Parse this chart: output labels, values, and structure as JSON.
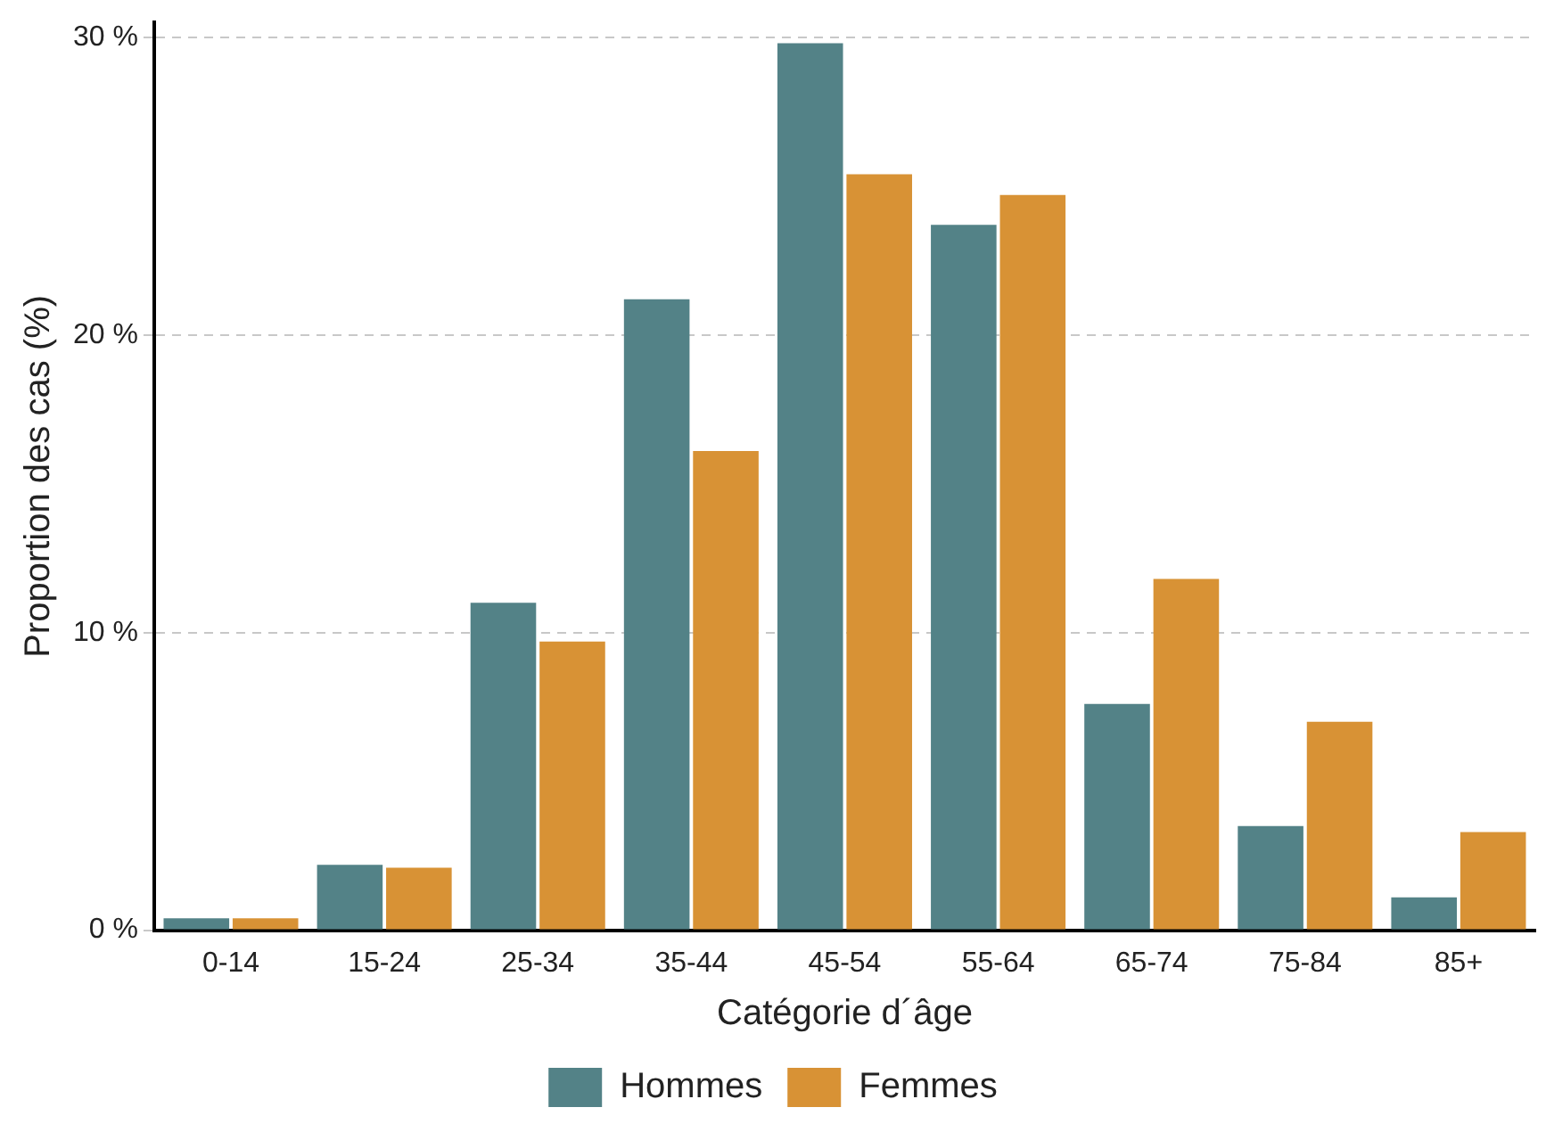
{
  "chart_data": {
    "type": "bar",
    "xlabel": "Catégorie d´âge",
    "ylabel": "Proportion des cas (%)",
    "categories": [
      "0-14",
      "15-24",
      "25-34",
      "35-44",
      "45-54",
      "55-64",
      "65-74",
      "75-84",
      "85+"
    ],
    "series": [
      {
        "name": "Hommes",
        "color": "#538287",
        "values": [
          0.4,
          2.2,
          11.0,
          21.2,
          29.8,
          23.7,
          7.6,
          3.5,
          1.1
        ]
      },
      {
        "name": "Femmes",
        "color": "#d89235",
        "values": [
          0.4,
          2.1,
          9.7,
          16.1,
          25.4,
          24.7,
          11.8,
          7.0,
          3.3
        ]
      }
    ],
    "ylim": [
      0,
      30.5
    ],
    "yticks": [
      {
        "value": 0,
        "label": "0 %"
      },
      {
        "value": 10,
        "label": "10 %"
      },
      {
        "value": 20,
        "label": "20 %"
      },
      {
        "value": 30,
        "label": "30 %"
      }
    ],
    "grid": "y",
    "legend": "bottom"
  }
}
